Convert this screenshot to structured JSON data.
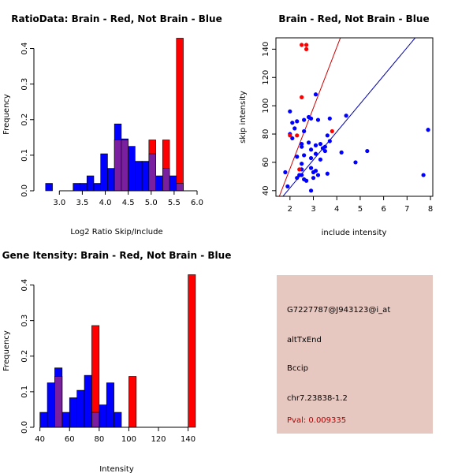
{
  "chart_data": [
    {
      "type": "bar",
      "title": "RatioData: Brain - Red, Not Brain - Blue",
      "xlabel": "Log2 Ratio Skip/Include",
      "ylabel": "Frequency",
      "xlim": [
        2.6,
        6.0
      ],
      "ylim": [
        0,
        0.43
      ],
      "xticks": [
        "3.0",
        "3.5",
        "4.0",
        "4.5",
        "5.0",
        "5.5",
        "6.0"
      ],
      "yticks": [
        "0.0",
        "0.1",
        "0.2",
        "0.3",
        "0.4"
      ],
      "series": [
        {
          "name": "Not Brain",
          "color": "#0000ff",
          "bins": [
            {
              "x0": 2.7,
              "x1": 2.85,
              "y": 0.021
            },
            {
              "x0": 3.3,
              "x1": 3.45,
              "y": 0.021
            },
            {
              "x0": 3.45,
              "x1": 3.6,
              "y": 0.021
            },
            {
              "x0": 3.6,
              "x1": 3.75,
              "y": 0.042
            },
            {
              "x0": 3.75,
              "x1": 3.9,
              "y": 0.021
            },
            {
              "x0": 3.9,
              "x1": 4.05,
              "y": 0.104
            },
            {
              "x0": 4.05,
              "x1": 4.2,
              "y": 0.063
            },
            {
              "x0": 4.2,
              "x1": 4.35,
              "y": 0.188
            },
            {
              "x0": 4.35,
              "x1": 4.5,
              "y": 0.146
            },
            {
              "x0": 4.5,
              "x1": 4.65,
              "y": 0.125
            },
            {
              "x0": 4.65,
              "x1": 4.8,
              "y": 0.083
            },
            {
              "x0": 4.8,
              "x1": 4.95,
              "y": 0.083
            },
            {
              "x0": 4.95,
              "x1": 5.1,
              "y": 0.104
            },
            {
              "x0": 5.1,
              "x1": 5.25,
              "y": 0.042
            },
            {
              "x0": 5.25,
              "x1": 5.4,
              "y": 0.063
            },
            {
              "x0": 5.4,
              "x1": 5.55,
              "y": 0.042
            },
            {
              "x0": 5.55,
              "x1": 5.7,
              "y": 0.021
            }
          ]
        },
        {
          "name": "Brain",
          "color": "#ff0000",
          "bins": [
            {
              "x0": 4.2,
              "x1": 4.35,
              "y": 0.143
            },
            {
              "x0": 4.35,
              "x1": 4.5,
              "y": 0.143
            },
            {
              "x0": 4.95,
              "x1": 5.1,
              "y": 0.143
            },
            {
              "x0": 5.25,
              "x1": 5.4,
              "y": 0.143
            },
            {
              "x0": 5.55,
              "x1": 5.7,
              "y": 0.429
            }
          ]
        }
      ]
    },
    {
      "type": "scatter",
      "title": "Brain - Red, Not Brain - Blue",
      "xlabel": "include intensity",
      "ylabel": "skip intensity",
      "xlim": [
        1.4,
        8.1
      ],
      "ylim": [
        36,
        148
      ],
      "xticks": [
        "2",
        "3",
        "4",
        "5",
        "6",
        "7",
        "8"
      ],
      "yticks": [
        "40",
        "60",
        "80",
        "100",
        "120",
        "140"
      ],
      "lines": [
        {
          "name": "Brain fit",
          "color": "#cc0000",
          "points": [
            [
              1.5,
              34
            ],
            [
              4.2,
              150
            ]
          ]
        },
        {
          "name": "Not Brain fit",
          "color": "#0000aa",
          "points": [
            [
              1.6,
              34
            ],
            [
              7.45,
              150
            ]
          ]
        }
      ],
      "series": [
        {
          "name": "Not Brain",
          "color": "#0000ff",
          "points": [
            [
              1.8,
              53
            ],
            [
              1.9,
              43
            ],
            [
              2.0,
              96
            ],
            [
              2.0,
              80
            ],
            [
              2.1,
              88
            ],
            [
              2.1,
              77
            ],
            [
              2.2,
              84
            ],
            [
              2.3,
              89
            ],
            [
              2.3,
              64
            ],
            [
              2.3,
              49
            ],
            [
              2.4,
              51
            ],
            [
              2.5,
              73
            ],
            [
              2.5,
              71
            ],
            [
              2.5,
              59
            ],
            [
              2.5,
              55
            ],
            [
              2.5,
              51
            ],
            [
              2.6,
              90
            ],
            [
              2.6,
              82
            ],
            [
              2.6,
              65
            ],
            [
              2.6,
              48
            ],
            [
              2.7,
              47
            ],
            [
              2.8,
              92
            ],
            [
              2.8,
              74
            ],
            [
              2.9,
              91
            ],
            [
              2.9,
              69
            ],
            [
              2.9,
              63
            ],
            [
              2.9,
              56
            ],
            [
              2.9,
              40
            ],
            [
              3.0,
              53
            ],
            [
              3.0,
              49
            ],
            [
              3.1,
              108
            ],
            [
              3.1,
              72
            ],
            [
              3.1,
              66
            ],
            [
              3.1,
              54
            ],
            [
              3.2,
              90
            ],
            [
              3.2,
              51
            ],
            [
              3.3,
              62
            ],
            [
              3.3,
              73
            ],
            [
              3.4,
              70
            ],
            [
              3.5,
              71
            ],
            [
              3.5,
              68
            ],
            [
              3.6,
              79
            ],
            [
              3.6,
              52
            ],
            [
              3.7,
              91
            ],
            [
              3.7,
              75
            ],
            [
              4.2,
              67
            ],
            [
              4.4,
              93
            ],
            [
              4.8,
              60
            ],
            [
              5.3,
              68
            ],
            [
              7.7,
              51
            ],
            [
              7.9,
              83
            ]
          ]
        },
        {
          "name": "Brain",
          "color": "#ff0000",
          "points": [
            [
              2.0,
              79
            ],
            [
              2.3,
              79
            ],
            [
              2.4,
              55
            ],
            [
              2.5,
              106
            ],
            [
              2.5,
              143
            ],
            [
              2.7,
              143
            ],
            [
              2.7,
              140
            ],
            [
              3.8,
              82
            ]
          ]
        }
      ]
    },
    {
      "type": "bar",
      "title": "Gene Itensity: Brain - Red, Not Brain - Blue",
      "xlabel": "Intensity",
      "ylabel": "Frequency",
      "xlim": [
        37,
        145
      ],
      "ylim": [
        0,
        0.43
      ],
      "xticks": [
        "40",
        "60",
        "80",
        "100",
        "120",
        "140"
      ],
      "yticks": [
        "0.0",
        "0.1",
        "0.2",
        "0.3",
        "0.4"
      ],
      "series": [
        {
          "name": "Not Brain",
          "color": "#0000ff",
          "bins": [
            {
              "x0": 40,
              "x1": 45,
              "y": 0.042
            },
            {
              "x0": 45,
              "x1": 50,
              "y": 0.125
            },
            {
              "x0": 50,
              "x1": 55,
              "y": 0.167
            },
            {
              "x0": 55,
              "x1": 60,
              "y": 0.042
            },
            {
              "x0": 60,
              "x1": 65,
              "y": 0.083
            },
            {
              "x0": 65,
              "x1": 70,
              "y": 0.104
            },
            {
              "x0": 70,
              "x1": 75,
              "y": 0.146
            },
            {
              "x0": 75,
              "x1": 80,
              "y": 0.042
            },
            {
              "x0": 80,
              "x1": 85,
              "y": 0.063
            },
            {
              "x0": 85,
              "x1": 90,
              "y": 0.125
            },
            {
              "x0": 90,
              "x1": 95,
              "y": 0.042
            }
          ]
        },
        {
          "name": "Brain",
          "color": "#ff0000",
          "bins": [
            {
              "x0": 50,
              "x1": 55,
              "y": 0.143
            },
            {
              "x0": 75,
              "x1": 80,
              "y": 0.286
            },
            {
              "x0": 100,
              "x1": 105,
              "y": 0.143
            },
            {
              "x0": 140,
              "x1": 145,
              "y": 0.429
            }
          ]
        }
      ]
    }
  ],
  "info_panel": {
    "background": "#e6c8c1",
    "probe_id": "G7227787@J943123@i_at",
    "event_type": "altTxEnd",
    "gene": "Bccip",
    "location": "chr7.23838-1.2",
    "pval": "Pval: 0.009335",
    "pval_color": "#b00000"
  }
}
